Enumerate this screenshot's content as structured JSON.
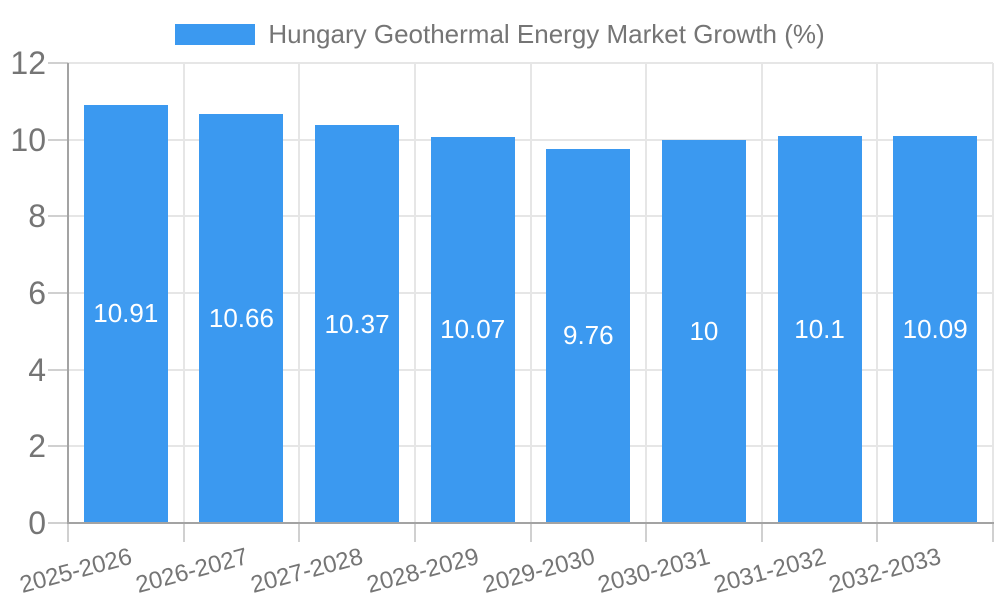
{
  "chart_data": {
    "type": "bar",
    "title": "Hungary Geothermal Energy Market Growth (%)",
    "categories": [
      "2025-2026",
      "2026-2027",
      "2027-2028",
      "2028-2029",
      "2029-2030",
      "2030-2031",
      "2031-2032",
      "2032-2033"
    ],
    "values": [
      10.91,
      10.66,
      10.37,
      10.07,
      9.76,
      10,
      10.1,
      10.09
    ],
    "xlabel": "",
    "ylabel": "",
    "ylim": [
      0,
      12
    ],
    "yticks": [
      0,
      2,
      4,
      6,
      8,
      10,
      12
    ],
    "grid": true,
    "legend_position": "top",
    "bar_value_labels_inside": true,
    "x_label_rotation_deg": -15,
    "colors": {
      "bar": "#3B99F0",
      "bar_label_text": "#FFFFFF",
      "axis_text": "#757575",
      "grid": "#E6E6E6",
      "tick": "#D0D0D0",
      "axis_line": "#A3A3A3",
      "background": "#FFFFFF"
    }
  },
  "legend": {
    "label": "Hungary Geothermal Energy Market Growth (%)"
  }
}
